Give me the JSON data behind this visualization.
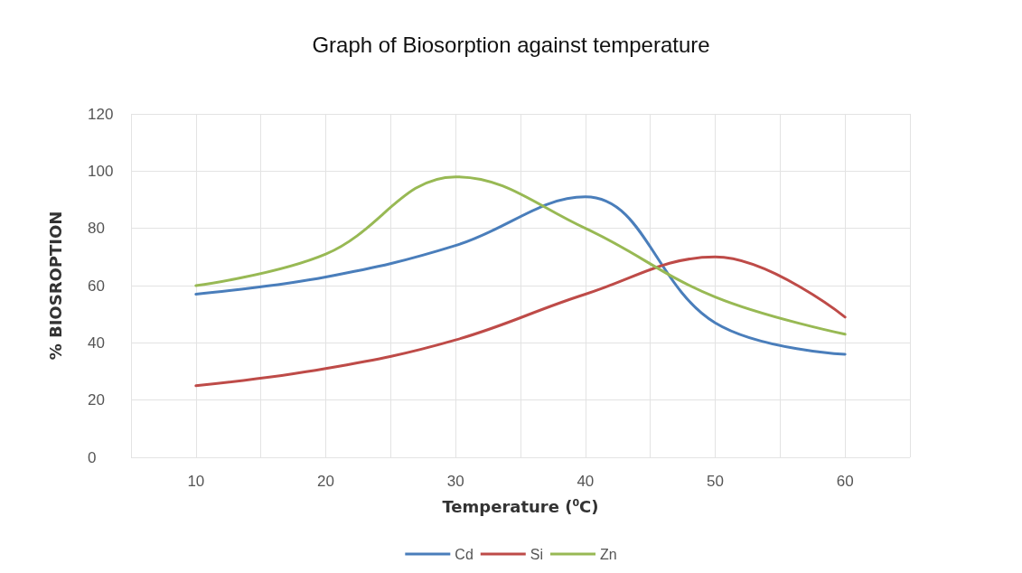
{
  "chart_data": {
    "type": "line",
    "title": "Graph of Biosorption against temperature",
    "xlabel": "Temperature ($^{0}$C)",
    "ylabel": "% BIOSROPTION",
    "x": [
      10,
      20,
      30,
      40,
      50,
      60
    ],
    "series": [
      {
        "name": "Cd",
        "color": "#4a7ebb",
        "values": [
          57,
          63,
          74,
          91,
          47,
          36
        ]
      },
      {
        "name": "Si",
        "color": "#be4b48",
        "values": [
          25,
          31,
          41,
          57,
          70,
          49
        ]
      },
      {
        "name": "Zn",
        "color": "#98b954",
        "values": [
          60,
          71,
          98,
          80,
          56,
          43
        ]
      }
    ],
    "xlim": [
      5,
      65
    ],
    "xticks": [
      {
        "value": 5,
        "label": null
      },
      10,
      {
        "value": 15,
        "label": null
      },
      20,
      {
        "value": 25,
        "label": null
      },
      30,
      {
        "value": 35,
        "label": null
      },
      40,
      {
        "value": 45,
        "label": null
      },
      50,
      {
        "value": 55,
        "label": null
      },
      60,
      {
        "value": 65,
        "label": null
      }
    ],
    "ylim": [
      0,
      120
    ],
    "yticks": [
      0,
      20,
      40,
      60,
      80,
      100,
      120
    ],
    "grid": true,
    "legend": "bottom",
    "marker": "none",
    "line_style": "solid"
  }
}
